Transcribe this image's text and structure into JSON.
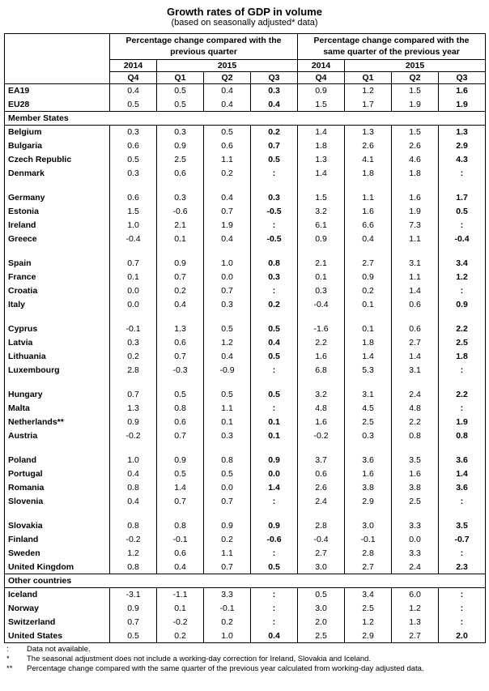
{
  "page": {
    "title": "Growth rates of GDP in volume",
    "subtitle": "(based on seasonally adjusted* data)"
  },
  "table": {
    "col_groups": [
      {
        "label": "Percentage change compared with the previous quarter"
      },
      {
        "label": "Percentage change compared with the same quarter of the previous year"
      }
    ],
    "years": [
      "2014",
      "2015"
    ],
    "quarters": [
      "Q4",
      "Q1",
      "Q2",
      "Q3"
    ],
    "blocks": [
      {
        "type": "rows",
        "rows": [
          {
            "name": "EA19",
            "values": [
              "0.4",
              "0.5",
              "0.4",
              "0.3",
              "0.9",
              "1.2",
              "1.5",
              "1.6"
            ]
          },
          {
            "name": "EU28",
            "values": [
              "0.5",
              "0.5",
              "0.4",
              "0.4",
              "1.5",
              "1.7",
              "1.9",
              "1.9"
            ]
          }
        ]
      },
      {
        "type": "section",
        "label": "Member States"
      },
      {
        "type": "rows",
        "rows": [
          {
            "name": "Belgium",
            "values": [
              "0.3",
              "0.3",
              "0.5",
              "0.2",
              "1.4",
              "1.3",
              "1.5",
              "1.3"
            ]
          },
          {
            "name": "Bulgaria",
            "values": [
              "0.6",
              "0.9",
              "0.6",
              "0.7",
              "1.8",
              "2.6",
              "2.6",
              "2.9"
            ]
          },
          {
            "name": "Czech Republic",
            "values": [
              "0.5",
              "2.5",
              "1.1",
              "0.5",
              "1.3",
              "4.1",
              "4.6",
              "4.3"
            ]
          },
          {
            "name": "Denmark",
            "values": [
              "0.3",
              "0.6",
              "0.2",
              ":",
              "1.4",
              "1.8",
              "1.8",
              ":"
            ]
          }
        ]
      },
      {
        "type": "spacer"
      },
      {
        "type": "rows",
        "rows": [
          {
            "name": "Germany",
            "values": [
              "0.6",
              "0.3",
              "0.4",
              "0.3",
              "1.5",
              "1.1",
              "1.6",
              "1.7"
            ]
          },
          {
            "name": "Estonia",
            "values": [
              "1.5",
              "-0.6",
              "0.7",
              "-0.5",
              "3.2",
              "1.6",
              "1.9",
              "0.5"
            ]
          },
          {
            "name": "Ireland",
            "values": [
              "1.0",
              "2.1",
              "1.9",
              ":",
              "6.1",
              "6.6",
              "7.3",
              ":"
            ]
          },
          {
            "name": "Greece",
            "values": [
              "-0.4",
              "0.1",
              "0.4",
              "-0.5",
              "0.9",
              "0.4",
              "1.1",
              "-0.4"
            ]
          }
        ]
      },
      {
        "type": "spacer"
      },
      {
        "type": "rows",
        "rows": [
          {
            "name": "Spain",
            "values": [
              "0.7",
              "0.9",
              "1.0",
              "0.8",
              "2.1",
              "2.7",
              "3.1",
              "3.4"
            ]
          },
          {
            "name": "France",
            "values": [
              "0.1",
              "0.7",
              "0.0",
              "0.3",
              "0.1",
              "0.9",
              "1.1",
              "1.2"
            ]
          },
          {
            "name": "Croatia",
            "values": [
              "0.0",
              "0.2",
              "0.7",
              ":",
              "0.3",
              "0.2",
              "1.4",
              ":"
            ]
          },
          {
            "name": "Italy",
            "values": [
              "0.0",
              "0.4",
              "0.3",
              "0.2",
              "-0.4",
              "0.1",
              "0.6",
              "0.9"
            ]
          }
        ]
      },
      {
        "type": "spacer"
      },
      {
        "type": "rows",
        "rows": [
          {
            "name": "Cyprus",
            "values": [
              "-0.1",
              "1.3",
              "0.5",
              "0.5",
              "-1.6",
              "0.1",
              "0.6",
              "2.2"
            ]
          },
          {
            "name": "Latvia",
            "values": [
              "0.3",
              "0.6",
              "1.2",
              "0.4",
              "2.2",
              "1.8",
              "2.7",
              "2.5"
            ]
          },
          {
            "name": "Lithuania",
            "values": [
              "0.2",
              "0.7",
              "0.4",
              "0.5",
              "1.6",
              "1.4",
              "1.4",
              "1.8"
            ]
          },
          {
            "name": "Luxembourg",
            "values": [
              "2.8",
              "-0.3",
              "-0.9",
              ":",
              "6.8",
              "5.3",
              "3.1",
              ":"
            ]
          }
        ]
      },
      {
        "type": "spacer"
      },
      {
        "type": "rows",
        "rows": [
          {
            "name": "Hungary",
            "values": [
              "0.7",
              "0.5",
              "0.5",
              "0.5",
              "3.2",
              "3.1",
              "2.4",
              "2.2"
            ]
          },
          {
            "name": "Malta",
            "values": [
              "1.3",
              "0.8",
              "1.1",
              ":",
              "4.8",
              "4.5",
              "4.8",
              ":"
            ]
          },
          {
            "name": "Netherlands**",
            "values": [
              "0.9",
              "0.6",
              "0.1",
              "0.1",
              "1.6",
              "2.5",
              "2.2",
              "1.9"
            ]
          },
          {
            "name": "Austria",
            "values": [
              "-0.2",
              "0.7",
              "0.3",
              "0.1",
              "-0.2",
              "0.3",
              "0.8",
              "0.8"
            ]
          }
        ]
      },
      {
        "type": "spacer"
      },
      {
        "type": "rows",
        "rows": [
          {
            "name": "Poland",
            "values": [
              "1.0",
              "0.9",
              "0.8",
              "0.9",
              "3.7",
              "3.6",
              "3.5",
              "3.6"
            ]
          },
          {
            "name": "Portugal",
            "values": [
              "0.4",
              "0.5",
              "0.5",
              "0.0",
              "0.6",
              "1.6",
              "1.6",
              "1.4"
            ]
          },
          {
            "name": "Romania",
            "values": [
              "0.8",
              "1.4",
              "0.0",
              "1.4",
              "2.6",
              "3.8",
              "3.8",
              "3.6"
            ]
          },
          {
            "name": "Slovenia",
            "values": [
              "0.4",
              "0.7",
              "0.7",
              ":",
              "2.4",
              "2.9",
              "2.5",
              ":"
            ]
          }
        ]
      },
      {
        "type": "spacer"
      },
      {
        "type": "rows",
        "rows": [
          {
            "name": "Slovakia",
            "values": [
              "0.8",
              "0.8",
              "0.9",
              "0.9",
              "2.8",
              "3.0",
              "3.3",
              "3.5"
            ]
          },
          {
            "name": "Finland",
            "values": [
              "-0.2",
              "-0.1",
              "0.2",
              "-0.6",
              "-0.4",
              "-0.1",
              "0.0",
              "-0.7"
            ]
          },
          {
            "name": "Sweden",
            "values": [
              "1.2",
              "0.6",
              "1.1",
              ":",
              "2.7",
              "2.8",
              "3.3",
              ":"
            ]
          },
          {
            "name": "United Kingdom",
            "values": [
              "0.8",
              "0.4",
              "0.7",
              "0.5",
              "3.0",
              "2.7",
              "2.4",
              "2.3"
            ]
          }
        ]
      },
      {
        "type": "section",
        "label": "Other countries"
      },
      {
        "type": "rows",
        "rows": [
          {
            "name": "Iceland",
            "values": [
              "-3.1",
              "-1.1",
              "3.3",
              ":",
              "0.5",
              "3.4",
              "6.0",
              ":"
            ]
          },
          {
            "name": "Norway",
            "values": [
              "0.9",
              "0.1",
              "-0.1",
              ":",
              "3.0",
              "2.5",
              "1.2",
              ":"
            ]
          },
          {
            "name": "Switzerland",
            "values": [
              "0.7",
              "-0.2",
              "0.2",
              ":",
              "2.0",
              "1.2",
              "1.3",
              ":"
            ]
          },
          {
            "name": "United States",
            "values": [
              "0.5",
              "0.2",
              "1.0",
              "0.4",
              "2.5",
              "2.9",
              "2.7",
              "2.0"
            ]
          }
        ]
      }
    ]
  },
  "footnotes": [
    {
      "symbol": ":",
      "text": "Data not available."
    },
    {
      "symbol": "*",
      "text": "The seasonal adjustment does not include a working-day correction for Ireland, Slovakia and Iceland."
    },
    {
      "symbol": "**",
      "text": "Percentage change compared with the same quarter of the previous year calculated from working-day adjusted data."
    }
  ]
}
